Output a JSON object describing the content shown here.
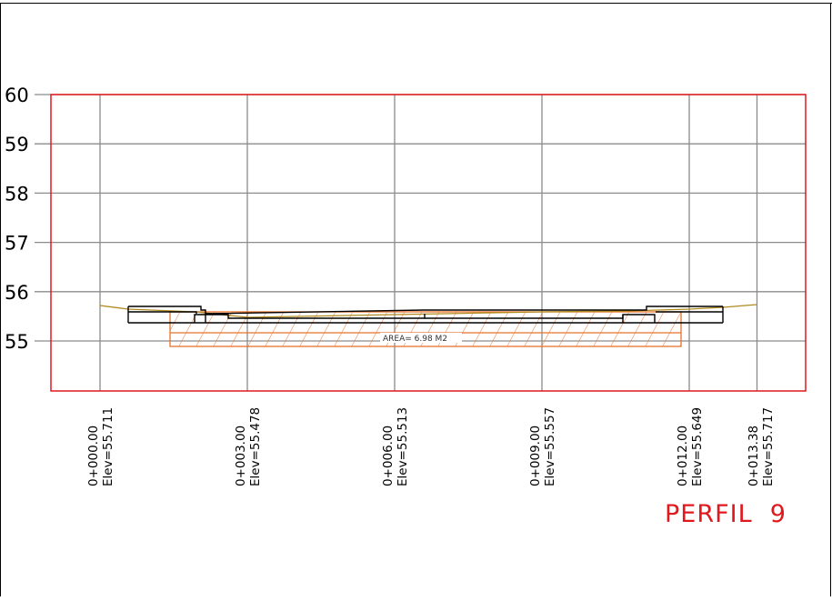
{
  "profile": {
    "title": "PERFIL  9",
    "area_label": "AREA= 6.98 M2"
  },
  "elevation_axis": {
    "labels": [
      "60",
      "59",
      "58",
      "57",
      "56",
      "55"
    ]
  },
  "stations": [
    {
      "station": "0+000.00",
      "elev": "Elev=55.711"
    },
    {
      "station": "0+003.00",
      "elev": "Elev=55.478"
    },
    {
      "station": "0+006.00",
      "elev": "Elev=55.513"
    },
    {
      "station": "0+009.00",
      "elev": "Elev=55.557"
    },
    {
      "station": "0+012.00",
      "elev": "Elev=55.649"
    },
    {
      "station": "0+013.38",
      "elev": "Elev=55.717"
    }
  ],
  "colors": {
    "frame": "#e0191e",
    "grid": "#8c8c8c",
    "terrain": "#b08a1e",
    "fill": "#e8742c",
    "title": "#e0191e"
  }
}
